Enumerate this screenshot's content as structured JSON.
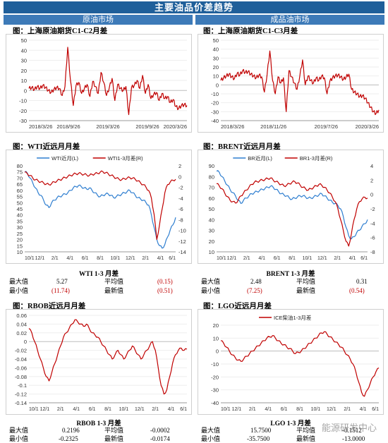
{
  "page_title": "主要油品价差趋势",
  "sections": {
    "crude": "原油市场",
    "products": "成品油市场"
  },
  "watermark": "能源研发中心",
  "colors": {
    "red": "#c00000",
    "blue": "#2e7ed0",
    "header": "#1f5f9a",
    "subheader": "#3d7ab8"
  },
  "stats": {
    "wti": {
      "title": "WTI 1-3 月差",
      "max_label": "最大值",
      "max_value": "5.27",
      "avg_label": "平均值",
      "avg_value": "(0.15)",
      "min_label": "最小值",
      "min_value": "(11.74)",
      "latest_label": "最新值",
      "latest_value": "(0.51)"
    },
    "brent": {
      "title": "BRENT 1-3 月差",
      "max_label": "最大值",
      "max_value": "2.48",
      "avg_label": "平均值",
      "avg_value": "0.31",
      "min_label": "最小值",
      "min_value": "(7.25)",
      "latest_label": "最新值",
      "latest_value": "(0.54)"
    },
    "rbob": {
      "title": "RBOB 1-3 月差",
      "max_label": "最大值",
      "max_value": "0.2196",
      "avg_label": "平均值",
      "avg_value": "-0.0002",
      "min_label": "最小值",
      "min_value": "-0.2325",
      "latest_label": "最新值",
      "latest_value": "-0.0174"
    },
    "lgo": {
      "title": "LGO 1-3 月差",
      "max_label": "最大值",
      "max_value": "15.7500",
      "avg_label": "平均值",
      "avg_value": "-0.1512",
      "min_label": "最小值",
      "min_value": "-35.7500",
      "latest_label": "最新值",
      "latest_value": "-13.0000"
    }
  },
  "chart_data": [
    {
      "id": "sc",
      "type": "line",
      "title": "图：上海原油期货C1-C2月差",
      "x_ticks": [
        "2018/3/26",
        "2018/9/26",
        "2019/3/26",
        "2019/9/26",
        "2020/3/26"
      ],
      "x_range": [
        "2018/3/26",
        "2020/5/31"
      ],
      "ylim": [
        -30,
        50
      ],
      "y_ticks": [
        50,
        40,
        30,
        20,
        10,
        0,
        -10,
        -20,
        -30
      ],
      "series": [
        {
          "color": "#c00000",
          "shape": "spiky",
          "values": [
            2,
            3,
            1,
            4,
            2,
            5,
            3,
            0,
            -2,
            1,
            3,
            2,
            -5,
            4,
            43,
            10,
            -15,
            5,
            8,
            -3,
            2,
            6,
            -6,
            9,
            4,
            -3,
            18,
            8,
            -5,
            3,
            12,
            -10,
            6,
            2,
            0,
            4,
            -24,
            3,
            5,
            10,
            2,
            15,
            -3,
            6,
            -8,
            -4,
            -2,
            -10,
            -3,
            -8,
            -6,
            -12,
            -9,
            -16,
            -18,
            -15,
            -14,
            -15
          ]
        }
      ]
    },
    {
      "id": "sc2",
      "type": "line",
      "title": "图：上海原油期货C1-C3月差",
      "x_ticks": [
        "2018/3/26",
        "2018/11/26",
        "2019/7/26",
        "2020/3/26"
      ],
      "x_range": [
        "2018/3/26",
        "2020/5/31"
      ],
      "ylim": [
        -40,
        50
      ],
      "y_ticks": [
        50,
        40,
        30,
        20,
        10,
        0,
        -10,
        -20,
        -30,
        -40
      ],
      "series": [
        {
          "color": "#c00000",
          "shape": "spiky",
          "values": [
            5,
            8,
            10,
            12,
            9,
            7,
            13,
            11,
            16,
            14,
            15,
            12,
            10,
            8,
            11,
            9,
            -8,
            12,
            38,
            5,
            -10,
            9,
            2,
            8,
            -30,
            16,
            9,
            2,
            -5,
            10,
            28,
            0,
            10,
            5,
            2,
            8,
            5,
            10,
            8,
            -10,
            4,
            8,
            10,
            11,
            9,
            6,
            9,
            12,
            -5,
            -8,
            -10,
            -13,
            -12,
            -15,
            -20,
            -25,
            -30,
            -32,
            -28
          ]
        }
      ]
    },
    {
      "id": "wti",
      "type": "line",
      "title": "图：WTI近远月月差",
      "x_ticks": [
        "10/1",
        "12/1",
        "2/1",
        "4/1",
        "6/1",
        "8/1",
        "10/1",
        "12/1",
        "2/1",
        "4/1",
        "6/1"
      ],
      "legend": [
        "WTI近月(L)",
        "WTI1-3月差(R)"
      ],
      "ylim_left": [
        10,
        80
      ],
      "y_ticks_left": [
        80,
        75,
        70,
        65,
        60,
        55,
        50,
        45,
        40,
        35,
        30,
        25,
        20,
        15,
        10
      ],
      "ylim_right": [
        -14,
        2
      ],
      "y_ticks_right": [
        2,
        0,
        -2,
        -4,
        -6,
        -8,
        -10,
        -12,
        -14
      ],
      "series": [
        {
          "name": "WTI近月(L)",
          "axis": "left",
          "color": "#2e7ed0",
          "values": [
            75,
            74,
            70,
            66,
            62,
            58,
            56,
            52,
            48,
            46,
            50,
            52,
            54,
            55,
            56,
            57,
            58,
            60,
            62,
            63,
            64,
            63,
            62,
            61,
            62,
            60,
            58,
            56,
            55,
            56,
            57,
            57,
            56,
            54,
            55,
            56,
            57,
            58,
            59,
            60,
            58,
            56,
            54,
            53,
            52,
            50,
            48,
            40,
            30,
            20,
            15,
            13,
            16,
            22,
            28,
            32,
            38
          ]
        },
        {
          "name": "WTI1-3月差(R)",
          "axis": "right",
          "color": "#c00000",
          "values": [
            0.8,
            0.5,
            0.2,
            -0.3,
            -0.6,
            -0.8,
            -1.0,
            -1.2,
            -1.4,
            -1.5,
            -1.3,
            -1.0,
            -0.8,
            -0.6,
            -0.4,
            -0.2,
            0.0,
            0.2,
            0.4,
            0.5,
            0.6,
            0.5,
            0.4,
            0.3,
            0.2,
            0.4,
            0.5,
            0.6,
            0.8,
            0.9,
            0.7,
            0.5,
            0.2,
            0.0,
            -0.3,
            -0.5,
            -0.6,
            -0.4,
            -0.3,
            -0.2,
            -0.3,
            -0.5,
            -0.8,
            -1.2,
            -1.5,
            -2.0,
            -2.6,
            -4.0,
            -7.0,
            -11.7,
            -9.0,
            -6.0,
            -3.0,
            -1.5,
            -1.0,
            -0.7,
            -0.5
          ]
        }
      ]
    },
    {
      "id": "brent",
      "type": "line",
      "title": "图：BRENT近远月月差",
      "x_ticks": [
        "10/1",
        "12/1",
        "2/1",
        "4/1",
        "6/1",
        "8/1",
        "10/1",
        "12/1",
        "2/1",
        "4/1",
        "6/1"
      ],
      "legend": [
        "BR近月(L)",
        "BR1-3月差(R)"
      ],
      "ylim_left": [
        10,
        90
      ],
      "y_ticks_left": [
        90,
        80,
        70,
        60,
        50,
        40,
        30,
        20,
        10
      ],
      "ylim_right": [
        -8,
        4
      ],
      "y_ticks_right": [
        4,
        2,
        0,
        -2,
        -4,
        -6,
        -8
      ],
      "series": [
        {
          "name": "BR近月(L)",
          "axis": "left",
          "color": "#2e7ed0",
          "values": [
            85,
            84,
            80,
            76,
            72,
            68,
            65,
            62,
            58,
            55,
            58,
            60,
            62,
            64,
            65,
            66,
            67,
            68,
            69,
            70,
            71,
            70,
            68,
            66,
            64,
            63,
            62,
            60,
            59,
            60,
            61,
            62,
            62,
            61,
            60,
            60,
            61,
            62,
            63,
            64,
            62,
            60,
            58,
            56,
            55,
            53,
            50,
            43,
            33,
            25,
            22,
            24,
            28,
            30,
            34,
            36,
            40
          ]
        },
        {
          "name": "BR1-3月差(R)",
          "axis": "right",
          "color": "#c00000",
          "values": [
            1.5,
            1.2,
            0.8,
            0.2,
            -0.3,
            -0.8,
            -1.0,
            -1.2,
            -0.8,
            -0.2,
            0.2,
            0.6,
            1.0,
            1.4,
            1.7,
            1.8,
            1.9,
            2.0,
            2.1,
            2.2,
            2.3,
            2.0,
            1.8,
            1.6,
            1.4,
            1.2,
            1.3,
            1.5,
            1.7,
            1.8,
            1.6,
            1.3,
            1.0,
            0.8,
            0.6,
            0.8,
            1.0,
            1.2,
            1.4,
            1.3,
            1.0,
            0.6,
            0.2,
            -0.4,
            -1.0,
            -2.0,
            -3.5,
            -5.0,
            -6.5,
            -7.2,
            -5.5,
            -3.5,
            -2.0,
            -1.0,
            -0.6,
            -0.4,
            -0.5
          ]
        }
      ]
    },
    {
      "id": "rbob",
      "type": "line",
      "title": "图：RBOB近远月月差",
      "x_ticks": [
        "10/1",
        "12/1",
        "2/1",
        "4/1",
        "6/1",
        "8/1",
        "10/1",
        "12/1",
        "2/1",
        "4/1",
        "6/1"
      ],
      "ylim": [
        -0.14,
        0.06
      ],
      "y_ticks": [
        0.06,
        0.04,
        0.02,
        0,
        -0.02,
        -0.04,
        -0.06,
        -0.08,
        -0.1,
        -0.12,
        -0.14
      ],
      "series": [
        {
          "color": "#c00000",
          "values": [
            0.03,
            0.02,
            0.0,
            -0.02,
            -0.04,
            -0.06,
            -0.08,
            -0.09,
            -0.07,
            -0.05,
            -0.03,
            -0.01,
            0.01,
            0.02,
            0.03,
            0.04,
            0.05,
            0.045,
            0.04,
            0.035,
            0.04,
            0.03,
            0.02,
            0.015,
            0.01,
            0.0,
            -0.01,
            -0.02,
            -0.03,
            -0.04,
            -0.03,
            -0.02,
            -0.03,
            -0.04,
            -0.03,
            -0.02,
            -0.01,
            -0.02,
            -0.03,
            -0.04,
            -0.03,
            -0.02,
            -0.01,
            0.0,
            -0.02,
            -0.06,
            -0.1,
            -0.12,
            -0.11,
            -0.08,
            -0.05,
            -0.03,
            -0.02,
            -0.015,
            -0.02,
            -0.0174
          ]
        }
      ]
    },
    {
      "id": "lgo",
      "type": "line",
      "title": "图：LGO近远月月差",
      "x_ticks": [
        "10/1",
        "12/1",
        "2/1",
        "4/1",
        "6/1",
        "8/1",
        "10/1",
        "12/1",
        "2/1",
        "4/1",
        "6/1"
      ],
      "legend": [
        "ICE柴油1-3月差"
      ],
      "ylim": [
        -40,
        20
      ],
      "y_ticks": [
        20,
        10,
        0,
        -10,
        -20,
        -30,
        -40
      ],
      "series": [
        {
          "name": "ICE柴油1-3月差",
          "color": "#c00000",
          "values": [
            8,
            6,
            3,
            0,
            -3,
            -5,
            -7,
            -8,
            -6,
            -4,
            -2,
            0,
            2,
            4,
            6,
            8,
            10,
            11,
            12,
            10,
            8,
            6,
            5,
            3,
            2,
            0,
            -2,
            -1,
            0,
            2,
            4,
            6,
            8,
            10,
            12,
            14,
            15,
            13,
            11,
            9,
            7,
            5,
            3,
            0,
            -3,
            -6,
            -10,
            -16,
            -24,
            -32,
            -35,
            -30,
            -25,
            -20,
            -16,
            -13
          ]
        }
      ]
    }
  ]
}
